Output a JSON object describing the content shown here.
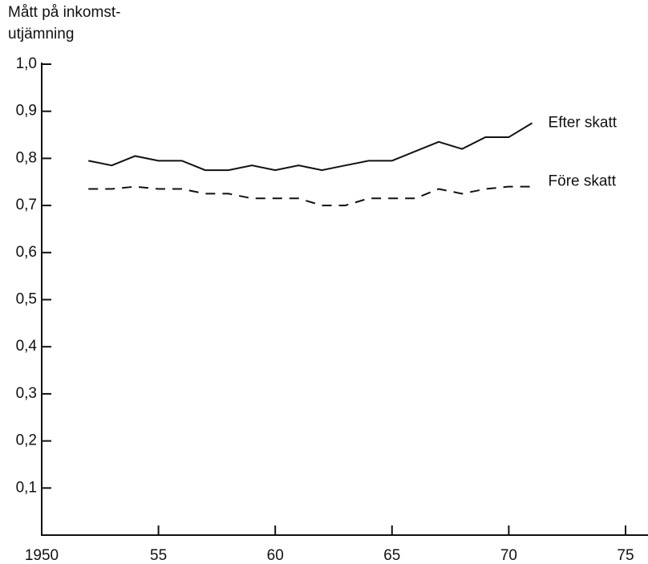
{
  "chart_data": {
    "type": "line",
    "ylabel": [
      "Mått på inkomst-",
      "utjämning"
    ],
    "x": [
      1952,
      1953,
      1954,
      1955,
      1956,
      1957,
      1958,
      1959,
      1960,
      1961,
      1962,
      1963,
      1964,
      1965,
      1966,
      1967,
      1968,
      1969,
      1970,
      1971
    ],
    "series": [
      {
        "name": "Efter skatt",
        "color": "#111111",
        "style": "solid",
        "values": [
          0.795,
          0.785,
          0.805,
          0.795,
          0.795,
          0.775,
          0.775,
          0.785,
          0.775,
          0.785,
          0.775,
          0.785,
          0.795,
          0.795,
          0.815,
          0.835,
          0.82,
          0.845,
          0.845,
          0.875
        ]
      },
      {
        "name": "Före skatt",
        "color": "#111111",
        "style": "dashed",
        "values": [
          0.735,
          0.735,
          0.74,
          0.735,
          0.735,
          0.725,
          0.725,
          0.715,
          0.715,
          0.715,
          0.7,
          0.7,
          0.715,
          0.715,
          0.715,
          0.735,
          0.725,
          0.735,
          0.74,
          0.74
        ]
      }
    ],
    "xlim": [
      1950,
      1975
    ],
    "xticks": [
      1950,
      {
        "value": 1955,
        "label": "55"
      },
      {
        "value": 1960,
        "label": "60"
      },
      {
        "value": 1965,
        "label": "65"
      },
      {
        "value": 1970,
        "label": "70"
      },
      {
        "value": 1975,
        "label": "75"
      }
    ],
    "ylim": [
      0,
      1.0
    ],
    "yticks": [
      {
        "value": 0.1,
        "label": "0,1"
      },
      {
        "value": 0.2,
        "label": "0,2"
      },
      {
        "value": 0.3,
        "label": "0,3"
      },
      {
        "value": 0.4,
        "label": "0,4"
      },
      {
        "value": 0.5,
        "label": "0,5"
      },
      {
        "value": 0.6,
        "label": "0,6"
      },
      {
        "value": 0.7,
        "label": "0,7"
      },
      {
        "value": 0.8,
        "label": "0,8"
      },
      {
        "value": 0.9,
        "label": "0,9"
      },
      {
        "value": 1.0,
        "label": "1,0"
      }
    ],
    "grid": false
  }
}
